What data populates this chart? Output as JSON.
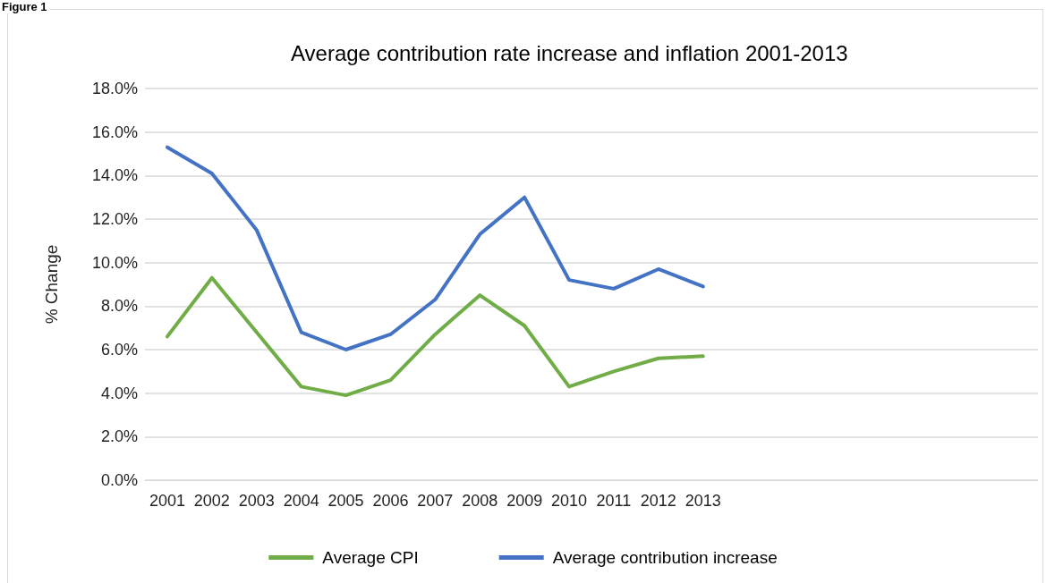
{
  "chart_data": {
    "type": "line",
    "title": "Average contribution rate increase and inflation 2001-2013",
    "ylabel": "% Change",
    "annotations": [
      "Figure 1"
    ],
    "categories": [
      "2001",
      "2002",
      "2003",
      "2004",
      "2005",
      "2006",
      "2007",
      "2008",
      "2009",
      "2010",
      "2011",
      "2012",
      "2013",
      null,
      null,
      null,
      null,
      null,
      null,
      null
    ],
    "series": [
      {
        "name": "Average CPI",
        "color": "#70ad47",
        "values": [
          6.6,
          9.3,
          6.8,
          4.3,
          3.9,
          4.6,
          6.7,
          8.5,
          7.1,
          4.3,
          5.0,
          5.6,
          5.7,
          null,
          null,
          null,
          null,
          null,
          null,
          null
        ]
      },
      {
        "name": "Average contribution increase",
        "color": "#4472c4",
        "values": [
          15.3,
          14.1,
          11.5,
          6.8,
          6.0,
          6.7,
          8.3,
          11.3,
          13.0,
          9.2,
          8.8,
          9.7,
          8.9,
          null,
          null,
          null,
          null,
          null,
          null,
          null
        ]
      }
    ],
    "ylim": [
      0,
      18
    ],
    "yticks": [
      {
        "value": 0,
        "label": "0.0%"
      },
      {
        "value": 2,
        "label": "2.0%"
      },
      {
        "value": 4,
        "label": "4.0%"
      },
      {
        "value": 6,
        "label": "6.0%"
      },
      {
        "value": 8,
        "label": "8.0%"
      },
      {
        "value": 10,
        "label": "10.0%"
      },
      {
        "value": 12,
        "label": "12.0%"
      },
      {
        "value": 14,
        "label": "14.0%"
      },
      {
        "value": 16,
        "label": "16.0%"
      },
      {
        "value": 18,
        "label": "18.0%"
      }
    ],
    "grid": "y",
    "legend": "bottom",
    "marker": "none",
    "line_style": "solid"
  }
}
